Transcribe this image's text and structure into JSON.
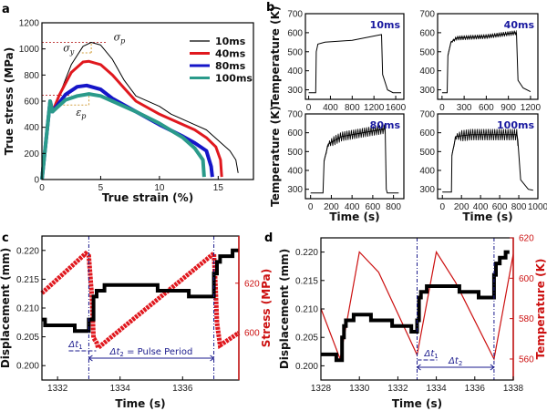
{
  "colors": {
    "black": "#000000",
    "red": "#e0181e",
    "blue": "#1515c8",
    "teal": "#2a9a8a",
    "axis_red": "#cc1010",
    "annotation_blue": "#1a1a8c",
    "guide_red": "#c04040",
    "guide_orange": "#d2a040"
  },
  "chart_data": [
    {
      "panel": "a",
      "type": "line",
      "xlabel": "True strain (%)",
      "ylabel": "True stress (MPa)",
      "xlim": [
        0,
        18
      ],
      "ylim": [
        0,
        1200
      ],
      "xticks": [
        0,
        5,
        10,
        15
      ],
      "yticks": [
        0,
        200,
        400,
        600,
        800,
        1000,
        1200
      ],
      "legend_position": "top-right",
      "annotations": [
        {
          "symbol": "σ",
          "sub": "p"
        },
        {
          "symbol": "σ",
          "sub": "y"
        },
        {
          "symbol": "ε",
          "sub": "p"
        }
      ],
      "series": [
        {
          "name": "10ms",
          "color": "#000000",
          "points": [
            [
              0,
              0
            ],
            [
              0.7,
              600
            ],
            [
              0.9,
              520
            ],
            [
              1.5,
              650
            ],
            [
              2.5,
              880
            ],
            [
              3.5,
              1020
            ],
            [
              4.2,
              1050
            ],
            [
              5,
              1030
            ],
            [
              6,
              920
            ],
            [
              7,
              760
            ],
            [
              8,
              640
            ],
            [
              10,
              560
            ],
            [
              11,
              500
            ],
            [
              13,
              420
            ],
            [
              14,
              380
            ],
            [
              15,
              300
            ],
            [
              16,
              220
            ],
            [
              16.5,
              150
            ],
            [
              16.7,
              50
            ]
          ]
        },
        {
          "name": "40ms",
          "color": "#e0181e",
          "points": [
            [
              0,
              0
            ],
            [
              0.7,
              600
            ],
            [
              0.9,
              520
            ],
            [
              1.5,
              650
            ],
            [
              2.5,
              820
            ],
            [
              3.5,
              900
            ],
            [
              4,
              905
            ],
            [
              5,
              880
            ],
            [
              6,
              800
            ],
            [
              7,
              700
            ],
            [
              8,
              600
            ],
            [
              10,
              500
            ],
            [
              12,
              420
            ],
            [
              13,
              380
            ],
            [
              14,
              320
            ],
            [
              14.8,
              250
            ],
            [
              15.2,
              150
            ],
            [
              15.3,
              20
            ]
          ]
        },
        {
          "name": "80ms",
          "color": "#1515c8",
          "points": [
            [
              0,
              0
            ],
            [
              0.7,
              600
            ],
            [
              0.9,
              520
            ],
            [
              2,
              650
            ],
            [
              3,
              710
            ],
            [
              3.8,
              720
            ],
            [
              5,
              690
            ],
            [
              6,
              620
            ],
            [
              8,
              520
            ],
            [
              10,
              420
            ],
            [
              12,
              330
            ],
            [
              13,
              280
            ],
            [
              14,
              220
            ],
            [
              14.4,
              100
            ],
            [
              14.5,
              20
            ]
          ]
        },
        {
          "name": "100ms",
          "color": "#2a9a8a",
          "points": [
            [
              0,
              0
            ],
            [
              0.7,
              600
            ],
            [
              0.9,
              520
            ],
            [
              2,
              610
            ],
            [
              3,
              640
            ],
            [
              4,
              655
            ],
            [
              5,
              640
            ],
            [
              6,
              600
            ],
            [
              8,
              520
            ],
            [
              10,
              430
            ],
            [
              12,
              320
            ],
            [
              13,
              240
            ],
            [
              13.7,
              150
            ],
            [
              13.8,
              20
            ]
          ]
        }
      ]
    },
    {
      "panel": "b",
      "type": "line",
      "ylabel": "Temperature (K)",
      "xlabel": "Time (s)",
      "subplots": [
        {
          "tag": "10ms",
          "xlim": [
            -60,
            1750
          ],
          "ylim": [
            250,
            700
          ],
          "xticks": [
            0,
            400,
            800,
            1200,
            1600
          ],
          "yticks": [
            300,
            400,
            500,
            600,
            700
          ],
          "oscillation_amplitude_K": 0,
          "points": [
            [
              0,
              285
            ],
            [
              130,
              285
            ],
            [
              140,
              500
            ],
            [
              170,
              540
            ],
            [
              300,
              550
            ],
            [
              800,
              560
            ],
            [
              1300,
              588
            ],
            [
              1340,
              590
            ],
            [
              1360,
              380
            ],
            [
              1450,
              300
            ],
            [
              1550,
              285
            ],
            [
              1700,
              285
            ]
          ]
        },
        {
          "tag": "40ms",
          "xlim": [
            -60,
            1300
          ],
          "ylim": [
            250,
            700
          ],
          "xticks": [
            0,
            300,
            600,
            900,
            1200
          ],
          "yticks": [
            300,
            400,
            500,
            600,
            700
          ],
          "oscillation_amplitude_K": 12,
          "points": [
            [
              0,
              285
            ],
            [
              70,
              285
            ],
            [
              80,
              480
            ],
            [
              120,
              550
            ],
            [
              200,
              572
            ],
            [
              600,
              580
            ],
            [
              1000,
              600
            ],
            [
              1010,
              600
            ],
            [
              1030,
              350
            ],
            [
              1100,
              310
            ],
            [
              1200,
              290
            ]
          ]
        },
        {
          "tag": "80ms",
          "xlim": [
            -50,
            900
          ],
          "ylim": [
            250,
            700
          ],
          "xticks": [
            0,
            200,
            400,
            600,
            800
          ],
          "yticks": [
            300,
            400,
            500,
            600,
            700
          ],
          "oscillation_amplitude_K": 25,
          "points": [
            [
              0,
              280
            ],
            [
              120,
              280
            ],
            [
              130,
              450
            ],
            [
              170,
              540
            ],
            [
              300,
              580
            ],
            [
              500,
              600
            ],
            [
              720,
              620
            ],
            [
              730,
              300
            ],
            [
              740,
              280
            ],
            [
              850,
              280
            ]
          ]
        },
        {
          "tag": "100ms",
          "xlim": [
            -50,
            1000
          ],
          "ylim": [
            250,
            700
          ],
          "xticks": [
            0,
            200,
            400,
            600,
            800,
            1000
          ],
          "yticks": [
            300,
            400,
            500,
            600,
            700
          ],
          "oscillation_amplitude_K": 30,
          "points": [
            [
              0,
              285
            ],
            [
              95,
              285
            ],
            [
              100,
              480
            ],
            [
              140,
              580
            ],
            [
              300,
              590
            ],
            [
              780,
              590
            ],
            [
              790,
              560
            ],
            [
              820,
              350
            ],
            [
              900,
              300
            ],
            [
              950,
              295
            ]
          ]
        }
      ]
    },
    {
      "panel": "c",
      "type": "line",
      "xlabel": "Time (s)",
      "ylabel": "Displacement (mm)",
      "y2label": "Stress (MPa)",
      "xlim": [
        1331.5,
        1337.8
      ],
      "ylim": [
        0.1975,
        0.2225
      ],
      "y2lim": [
        581,
        639
      ],
      "xticks": [
        1332,
        1334,
        1336
      ],
      "yticks": [
        "0.200",
        "0.205",
        "0.210",
        "0.215",
        "0.220"
      ],
      "y2ticks": [
        600,
        620
      ],
      "markers_x": [
        1333,
        1337
      ],
      "annotations": {
        "dt1": "Δt",
        "dt1_sub": "1",
        "dt2": "Δt",
        "dt2_sub": "2",
        "dt2_suffix": " = Pulse Period"
      },
      "displacement": [
        [
          1331.5,
          0.208
        ],
        [
          1331.6,
          0.208
        ],
        [
          1331.6,
          0.207
        ],
        [
          1332.55,
          0.207
        ],
        [
          1332.55,
          0.206
        ],
        [
          1333,
          0.206
        ],
        [
          1333,
          0.208
        ],
        [
          1333.15,
          0.208
        ],
        [
          1333.15,
          0.212
        ],
        [
          1333.25,
          0.212
        ],
        [
          1333.25,
          0.213
        ],
        [
          1333.5,
          0.213
        ],
        [
          1333.5,
          0.214
        ],
        [
          1335.2,
          0.214
        ],
        [
          1335.2,
          0.213
        ],
        [
          1336.2,
          0.213
        ],
        [
          1336.2,
          0.212
        ],
        [
          1337,
          0.212
        ],
        [
          1337,
          0.216
        ],
        [
          1337.1,
          0.216
        ],
        [
          1337.1,
          0.218
        ],
        [
          1337.2,
          0.218
        ],
        [
          1337.2,
          0.219
        ],
        [
          1337.6,
          0.219
        ],
        [
          1337.6,
          0.22
        ],
        [
          1337.8,
          0.22
        ]
      ],
      "stress": [
        [
          1331.5,
          616
        ],
        [
          1332.9,
          632
        ],
        [
          1333,
          631
        ],
        [
          1333.1,
          614
        ],
        [
          1333.15,
          598
        ],
        [
          1333.25,
          596
        ],
        [
          1333.3,
          594
        ],
        [
          1337,
          632
        ],
        [
          1337.05,
          620
        ],
        [
          1337.1,
          604
        ],
        [
          1337.2,
          595
        ],
        [
          1337.8,
          600
        ]
      ]
    },
    {
      "panel": "d",
      "type": "line",
      "xlabel": "Time (s)",
      "ylabel": "Displacement (mm)",
      "y2label": "Temperature (K)",
      "xlim": [
        1328,
        1338
      ],
      "ylim": [
        0.1975,
        0.2225
      ],
      "y2lim": [
        549.6,
        620
      ],
      "xticks": [
        1328,
        1330,
        1332,
        1334,
        1336,
        1338
      ],
      "yticks": [
        "0.200",
        "0.205",
        "0.210",
        "0.215",
        "0.220"
      ],
      "y2ticks": [
        560,
        580,
        600,
        620
      ],
      "markers_x": [
        1333,
        1337
      ],
      "annotations": {
        "dt1": "Δt",
        "dt1_sub": "1",
        "dt2": "Δt",
        "dt2_sub": "2"
      },
      "displacement": [
        [
          1328,
          0.202
        ],
        [
          1328.8,
          0.202
        ],
        [
          1328.8,
          0.201
        ],
        [
          1329.1,
          0.201
        ],
        [
          1329.1,
          0.205
        ],
        [
          1329.2,
          0.205
        ],
        [
          1329.2,
          0.207
        ],
        [
          1329.3,
          0.207
        ],
        [
          1329.3,
          0.208
        ],
        [
          1329.7,
          0.208
        ],
        [
          1329.7,
          0.209
        ],
        [
          1330.6,
          0.209
        ],
        [
          1330.6,
          0.208
        ],
        [
          1331.7,
          0.208
        ],
        [
          1331.7,
          0.207
        ],
        [
          1332.7,
          0.207
        ],
        [
          1332.7,
          0.206
        ],
        [
          1333,
          0.206
        ],
        [
          1333,
          0.208
        ],
        [
          1333.1,
          0.208
        ],
        [
          1333.1,
          0.212
        ],
        [
          1333.2,
          0.212
        ],
        [
          1333.2,
          0.213
        ],
        [
          1333.5,
          0.213
        ],
        [
          1333.5,
          0.214
        ],
        [
          1335.2,
          0.214
        ],
        [
          1335.2,
          0.213
        ],
        [
          1336.2,
          0.213
        ],
        [
          1336.2,
          0.212
        ],
        [
          1337,
          0.212
        ],
        [
          1337,
          0.216
        ],
        [
          1337.1,
          0.216
        ],
        [
          1337.1,
          0.218
        ],
        [
          1337.3,
          0.218
        ],
        [
          1337.3,
          0.219
        ],
        [
          1337.6,
          0.219
        ],
        [
          1337.6,
          0.22
        ],
        [
          1337.8,
          0.22
        ]
      ],
      "temperature": [
        [
          1328,
          585
        ],
        [
          1329,
          560
        ],
        [
          1330,
          613
        ],
        [
          1331,
          603
        ],
        [
          1333,
          562
        ],
        [
          1334,
          613
        ],
        [
          1335,
          598
        ],
        [
          1337,
          560
        ],
        [
          1338,
          612
        ]
      ]
    }
  ]
}
